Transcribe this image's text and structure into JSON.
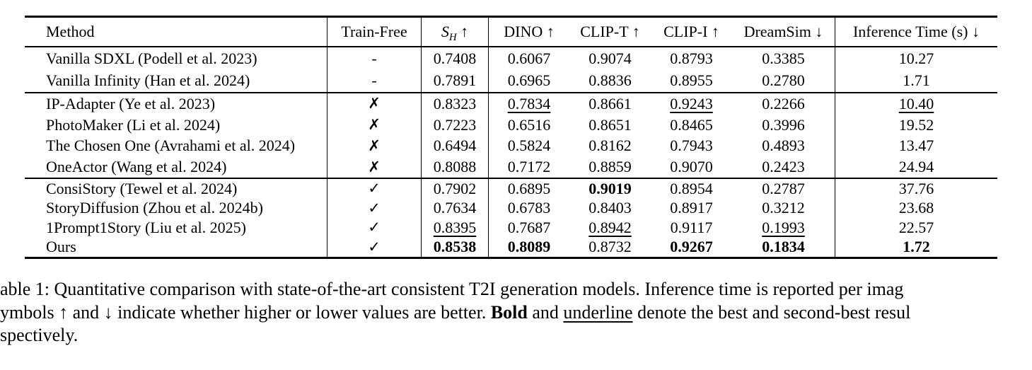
{
  "table": {
    "columns": [
      {
        "key": "method",
        "label": "Method"
      },
      {
        "key": "train-free",
        "label": "Train-Free"
      },
      {
        "key": "s-h",
        "math": {
          "base": "S",
          "sub": "H"
        },
        "arrow": "↑"
      },
      {
        "key": "dino",
        "label": "DINO",
        "arrow": "↑"
      },
      {
        "key": "clip-t",
        "label": "CLIP-T",
        "arrow": "↑"
      },
      {
        "key": "clip-i",
        "label": "CLIP-I",
        "arrow": "↑"
      },
      {
        "key": "dreamsim",
        "label": "DreamSim",
        "arrow": "↓"
      },
      {
        "key": "inference-time",
        "label": "Inference Time (s)",
        "arrow": "↓"
      }
    ],
    "groups": [
      {
        "name": "baselines",
        "rows": [
          {
            "method": "Vanilla SDXL (Podell et al. 2023)",
            "mark": "-",
            "values": [
              "0.7408",
              "0.6067",
              "0.9074",
              "0.8793",
              "0.3385",
              "10.27"
            ]
          },
          {
            "method": "Vanilla Infinity (Han et al. 2024)",
            "mark": "-",
            "values": [
              "0.7891",
              "0.6965",
              "0.8836",
              "0.8955",
              "0.2780",
              "1.71"
            ]
          }
        ]
      },
      {
        "name": "not-train-free",
        "rows": [
          {
            "method": "IP-Adapter (Ye et al. 2023)",
            "mark": "✗",
            "values": [
              "0.8323",
              {
                "t": "0.7834",
                "e": "u"
              },
              "0.8661",
              {
                "t": "0.9243",
                "e": "u"
              },
              "0.2266",
              {
                "t": "10.40",
                "e": "u"
              }
            ]
          },
          {
            "method": "PhotoMaker (Li et al. 2024)",
            "mark": "✗",
            "values": [
              "0.7223",
              "0.6516",
              "0.8651",
              "0.8465",
              "0.3996",
              "19.52"
            ]
          },
          {
            "method": "The Chosen One (Avrahami et al. 2024)",
            "mark": "✗",
            "values": [
              "0.6494",
              "0.5824",
              "0.8162",
              "0.7943",
              "0.4893",
              "13.47"
            ]
          },
          {
            "method": "OneActor (Wang et al. 2024)",
            "mark": "✗",
            "values": [
              "0.8088",
              "0.7172",
              "0.8859",
              "0.9070",
              "0.2423",
              "24.94"
            ]
          }
        ]
      },
      {
        "name": "train-free",
        "rows": [
          {
            "method": "ConsiStory (Tewel et al. 2024)",
            "mark": "✓",
            "values": [
              "0.7902",
              "0.6895",
              {
                "t": "0.9019",
                "e": "b"
              },
              "0.8954",
              "0.2787",
              "37.76"
            ]
          },
          {
            "method": "StoryDiffusion (Zhou et al. 2024b)",
            "mark": "✓",
            "values": [
              "0.7634",
              "0.6783",
              "0.8403",
              "0.8917",
              "0.3212",
              "23.68"
            ]
          },
          {
            "method": "1Prompt1Story (Liu et al. 2025)",
            "mark": "✓",
            "values": [
              {
                "t": "0.8395",
                "e": "u"
              },
              "0.7687",
              {
                "t": "0.8942",
                "e": "u"
              },
              "0.9117",
              {
                "t": "0.1993",
                "e": "u"
              },
              "22.57"
            ]
          },
          {
            "method": "Ours",
            "mark": "✓",
            "values": [
              {
                "t": "0.8538",
                "e": "b"
              },
              {
                "t": "0.8089",
                "e": "b"
              },
              "0.8732",
              {
                "t": "0.9267",
                "e": "b"
              },
              {
                "t": "0.1834",
                "e": "b"
              },
              {
                "t": "1.72",
                "e": "b"
              }
            ]
          }
        ]
      }
    ]
  },
  "caption": {
    "line1": "able 1: Quantitative comparison with state-of-the-art consistent T2I generation models. Inference time is reported per imag",
    "line2_segments": [
      {
        "t": "ymbols ↑ and ↓ indicate whether higher or lower values are better. "
      },
      {
        "t": "Bold",
        "e": "b"
      },
      {
        "t": " and "
      },
      {
        "t": "underline",
        "e": "u"
      },
      {
        "t": " denote the best and second-best resul"
      }
    ],
    "line3": "spectively."
  }
}
